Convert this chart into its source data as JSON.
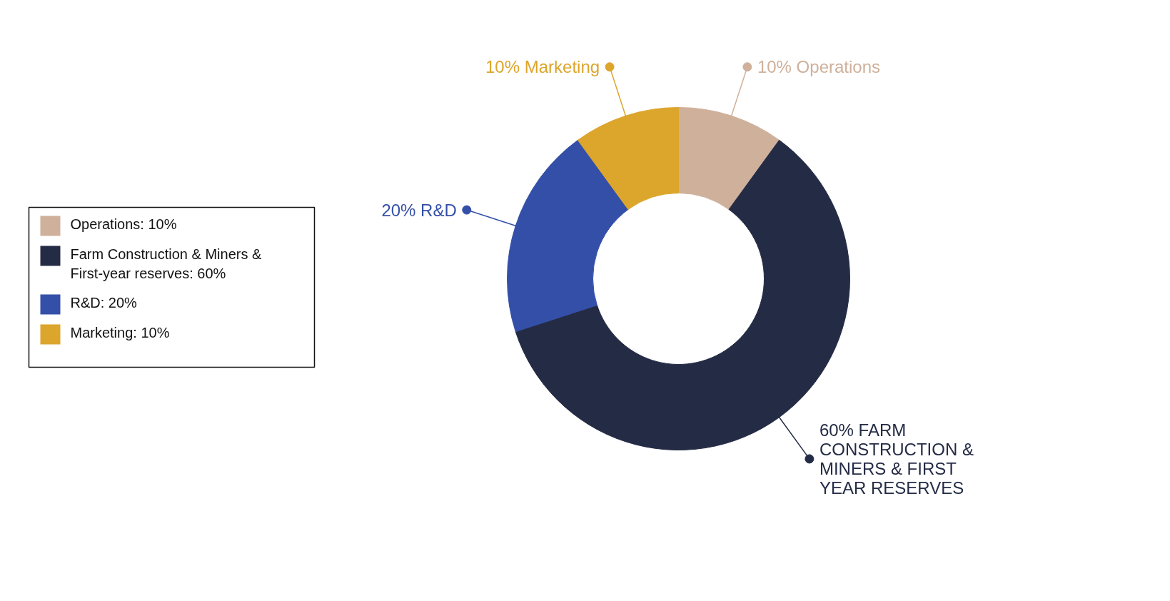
{
  "chart_data": {
    "type": "donut",
    "categories": [
      "Operations: 10%",
      "Farm Construction & Miners & First-year reserves: 60%",
      "R&D: 20%",
      "Marketing: 10%"
    ],
    "values": [
      10,
      60,
      20,
      10
    ],
    "colors": [
      "#cfb09a",
      "#242b45",
      "#344fa8",
      "#dca52c"
    ],
    "annotations": [
      "10% Operations",
      "60% FARM CONSTRUCTION & MINERS & FIRST YEAR RESERVES",
      "20% R&D",
      "10% Marketing"
    ],
    "legend": "left"
  }
}
